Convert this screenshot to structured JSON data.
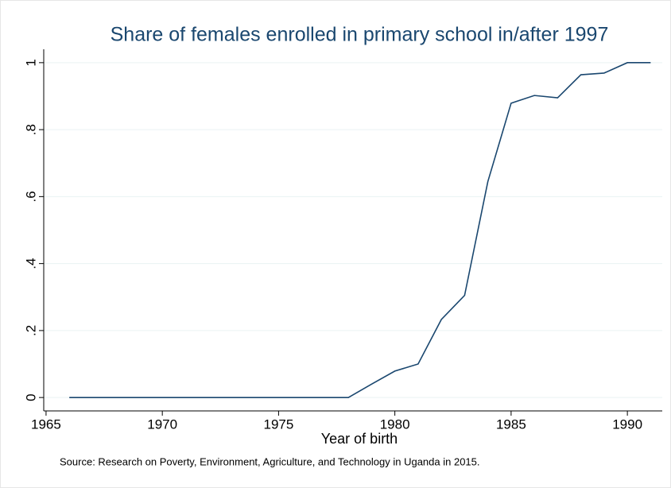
{
  "chart_data": {
    "type": "line",
    "title": "Share of females enrolled in primary school in/after 1997",
    "x_label": "Year of birth",
    "note": "Source: Research on Poverty, Environment, Agriculture, and Technology in Uganda in 2015.",
    "x": [
      1966,
      1967,
      1968,
      1969,
      1970,
      1971,
      1972,
      1973,
      1974,
      1975,
      1976,
      1977,
      1978,
      1979,
      1980,
      1981,
      1982,
      1983,
      1984,
      1985,
      1986,
      1987,
      1988,
      1989,
      1990,
      1991
    ],
    "series": [
      {
        "color": "#1a476f",
        "values": [
          0,
          0,
          0,
          0,
          0,
          0,
          0,
          0,
          0,
          0,
          0,
          0,
          0,
          0.04,
          0.079,
          0.1,
          0.233,
          0.305,
          0.645,
          0.879,
          0.902,
          0.895,
          0.964,
          0.969,
          1,
          1
        ]
      }
    ],
    "xlim": [
      1964.9,
      1991.5
    ],
    "xticks": [
      1965,
      1970,
      1975,
      1980,
      1985,
      1990
    ],
    "ylim": [
      -0.04,
      1.04
    ],
    "yticks": [
      0,
      {
        "value": 0.2,
        "label": ".2"
      },
      {
        "value": 0.4,
        "label": ".4"
      },
      {
        "value": 0.6,
        "label": ".6"
      },
      {
        "value": 0.8,
        "label": ".8"
      },
      1
    ],
    "grid": true
  }
}
